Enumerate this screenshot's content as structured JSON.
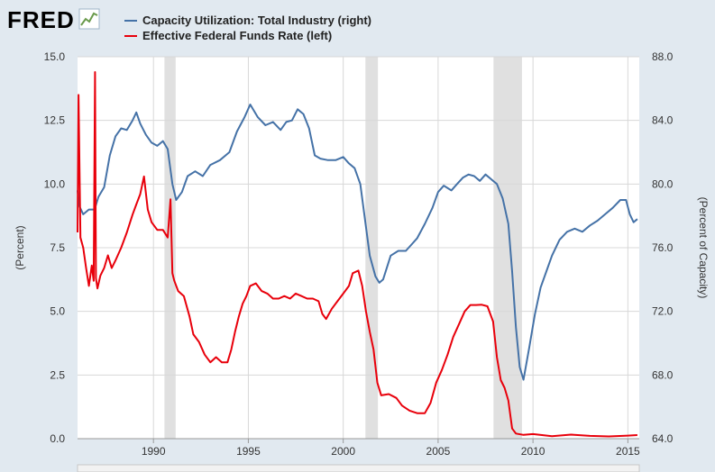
{
  "brand": {
    "logo_text": "FRED"
  },
  "colors": {
    "capacity": "#4572a7",
    "fedfunds": "#e8000b",
    "background": "#e1e9f0",
    "plot_bg": "#ffffff",
    "recession": "#e0e0e0"
  },
  "chart_data": {
    "type": "line",
    "x_unit": "year",
    "x_ticks": [
      "1990",
      "1995",
      "2000",
      "2005",
      "2010",
      "2015"
    ],
    "x_range": [
      1986.0,
      2015.6
    ],
    "y_left": {
      "label": "(Percent)",
      "range": [
        0,
        15
      ],
      "ticks": [
        "0.0",
        "2.5",
        "5.0",
        "7.5",
        "10.0",
        "12.5",
        "15.0"
      ]
    },
    "y_right": {
      "label": "(Percent of Capacity)",
      "range": [
        64,
        88
      ],
      "ticks": [
        "64.0",
        "68.0",
        "72.0",
        "76.0",
        "80.0",
        "84.0",
        "88.0"
      ]
    },
    "recessions": [
      [
        1990.58,
        1991.17
      ],
      [
        2001.17,
        2001.83
      ],
      [
        2007.92,
        2009.42
      ]
    ],
    "grid": true,
    "series": [
      {
        "name": "Capacity Utilization: Total Industry (right)",
        "axis": "right",
        "x": [
          1986.0,
          1986.1,
          1986.3,
          1986.6,
          1986.9,
          1987.1,
          1987.4,
          1987.7,
          1988.0,
          1988.3,
          1988.6,
          1988.9,
          1989.1,
          1989.3,
          1989.6,
          1989.9,
          1990.2,
          1990.5,
          1990.75,
          1991.0,
          1991.2,
          1991.5,
          1991.8,
          1992.2,
          1992.6,
          1993.0,
          1993.5,
          1994.0,
          1994.4,
          1994.8,
          1995.1,
          1995.5,
          1995.9,
          1996.3,
          1996.7,
          1997.0,
          1997.3,
          1997.6,
          1997.9,
          1998.2,
          1998.5,
          1998.8,
          1999.2,
          1999.6,
          2000.0,
          2000.3,
          2000.6,
          2000.9,
          2001.1,
          2001.4,
          2001.7,
          2001.9,
          2002.1,
          2002.5,
          2002.9,
          2003.3,
          2003.6,
          2003.9,
          2004.3,
          2004.7,
          2005.0,
          2005.3,
          2005.7,
          2006.0,
          2006.3,
          2006.6,
          2006.9,
          2007.2,
          2007.5,
          2007.8,
          2008.1,
          2008.4,
          2008.7,
          2008.9,
          2009.1,
          2009.3,
          2009.5,
          2009.8,
          2010.1,
          2010.4,
          2010.7,
          2011.0,
          2011.4,
          2011.8,
          2012.2,
          2012.6,
          2013.0,
          2013.4,
          2013.8,
          2014.2,
          2014.6,
          2014.9,
          2015.1,
          2015.3,
          2015.5
        ],
        "y": [
          79.6,
          78.6,
          78.1,
          78.4,
          78.4,
          79.2,
          79.8,
          81.8,
          83.0,
          83.5,
          83.4,
          84.0,
          84.5,
          83.8,
          83.1,
          82.6,
          82.4,
          82.7,
          82.2,
          80.0,
          79.0,
          79.5,
          80.5,
          80.8,
          80.5,
          81.2,
          81.5,
          82.0,
          83.3,
          84.2,
          85.0,
          84.2,
          83.7,
          83.9,
          83.4,
          83.9,
          84.0,
          84.7,
          84.4,
          83.5,
          81.8,
          81.6,
          81.5,
          81.5,
          81.7,
          81.3,
          81.0,
          80.0,
          78.2,
          75.5,
          74.2,
          73.8,
          74.0,
          75.5,
          75.8,
          75.8,
          76.2,
          76.6,
          77.5,
          78.5,
          79.5,
          79.9,
          79.6,
          80.0,
          80.4,
          80.6,
          80.5,
          80.2,
          80.6,
          80.3,
          80.0,
          79.1,
          77.5,
          74.5,
          71.0,
          68.5,
          67.7,
          69.7,
          71.8,
          73.5,
          74.5,
          75.5,
          76.5,
          77.0,
          77.2,
          77.0,
          77.4,
          77.7,
          78.1,
          78.5,
          79.0,
          79.0,
          78.1,
          77.6,
          77.8
        ]
      },
      {
        "name": "Effective Federal Funds Rate (left)",
        "axis": "left",
        "x": [
          1986.0,
          1986.05,
          1986.15,
          1986.3,
          1986.45,
          1986.6,
          1986.75,
          1986.85,
          1986.92,
          1986.97,
          1987.05,
          1987.2,
          1987.4,
          1987.6,
          1987.8,
          1988.0,
          1988.3,
          1988.6,
          1988.9,
          1989.1,
          1989.3,
          1989.5,
          1989.7,
          1989.9,
          1990.2,
          1990.5,
          1990.75,
          1990.9,
          1991.0,
          1991.1,
          1991.3,
          1991.6,
          1991.9,
          1992.1,
          1992.4,
          1992.7,
          1993.0,
          1993.3,
          1993.6,
          1993.9,
          1994.1,
          1994.3,
          1994.5,
          1994.7,
          1994.9,
          1995.1,
          1995.4,
          1995.7,
          1996.0,
          1996.3,
          1996.6,
          1996.9,
          1997.2,
          1997.5,
          1997.8,
          1998.1,
          1998.4,
          1998.7,
          1998.9,
          1999.1,
          1999.4,
          1999.7,
          2000.0,
          2000.3,
          2000.5,
          2000.8,
          2001.0,
          2001.2,
          2001.4,
          2001.6,
          2001.8,
          2002.0,
          2002.4,
          2002.8,
          2003.1,
          2003.5,
          2003.9,
          2004.3,
          2004.6,
          2004.9,
          2005.2,
          2005.5,
          2005.8,
          2006.1,
          2006.4,
          2006.7,
          2007.0,
          2007.3,
          2007.6,
          2007.9,
          2008.1,
          2008.3,
          2008.5,
          2008.7,
          2008.9,
          2009.1,
          2009.5,
          2010.0,
          2011.0,
          2012.0,
          2013.0,
          2014.0,
          2015.0,
          2015.5
        ],
        "y": [
          8.1,
          13.5,
          7.9,
          7.5,
          6.7,
          6.0,
          6.8,
          6.2,
          14.4,
          6.3,
          5.9,
          6.4,
          6.7,
          7.2,
          6.7,
          7.0,
          7.5,
          8.1,
          8.8,
          9.2,
          9.6,
          10.3,
          9.0,
          8.5,
          8.2,
          8.2,
          7.9,
          9.4,
          6.5,
          6.2,
          5.8,
          5.6,
          4.8,
          4.1,
          3.8,
          3.3,
          3.0,
          3.2,
          3.0,
          3.0,
          3.5,
          4.2,
          4.8,
          5.3,
          5.6,
          6.0,
          6.1,
          5.8,
          5.7,
          5.5,
          5.5,
          5.6,
          5.5,
          5.7,
          5.6,
          5.5,
          5.5,
          5.4,
          4.9,
          4.7,
          5.1,
          5.4,
          5.7,
          6.0,
          6.5,
          6.6,
          6.0,
          5.0,
          4.2,
          3.5,
          2.2,
          1.7,
          1.75,
          1.6,
          1.3,
          1.1,
          1.0,
          1.0,
          1.4,
          2.2,
          2.7,
          3.3,
          4.0,
          4.5,
          5.0,
          5.25,
          5.25,
          5.26,
          5.2,
          4.6,
          3.2,
          2.3,
          2.0,
          1.5,
          0.4,
          0.2,
          0.15,
          0.18,
          0.1,
          0.16,
          0.11,
          0.09,
          0.12,
          0.14
        ]
      }
    ]
  }
}
